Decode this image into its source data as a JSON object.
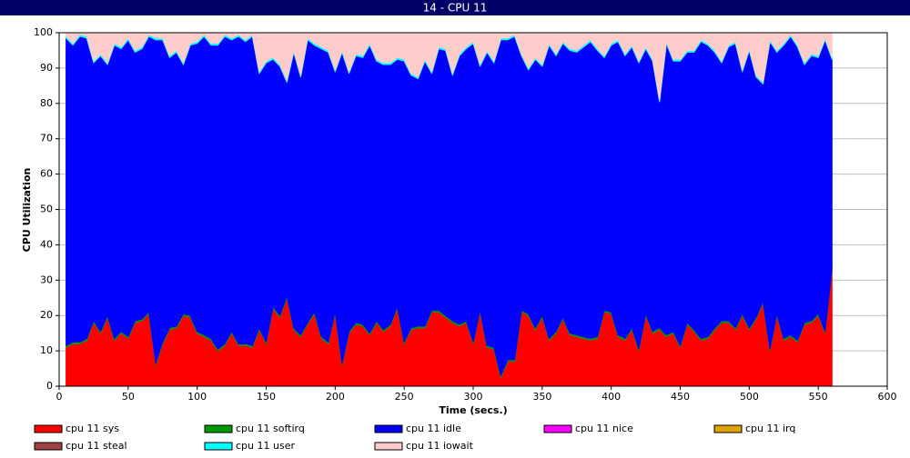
{
  "chart_data": {
    "type": "stacked_area",
    "title": "14 - CPU 11",
    "xlabel": "Time (secs.)",
    "ylabel": "CPU Utilization",
    "xlim": [
      0,
      600
    ],
    "ylim": [
      0,
      100
    ],
    "xticks": [
      0,
      50,
      100,
      150,
      200,
      250,
      300,
      350,
      400,
      450,
      500,
      550,
      600
    ],
    "yticks": [
      0,
      10,
      20,
      30,
      40,
      50,
      60,
      70,
      80,
      90,
      100
    ],
    "grid": true,
    "legend": "bottom",
    "x": [
      5,
      10,
      15,
      20,
      25,
      30,
      35,
      40,
      45,
      50,
      55,
      60,
      65,
      70,
      75,
      80,
      85,
      90,
      95,
      100,
      105,
      110,
      115,
      120,
      125,
      130,
      135,
      140,
      145,
      150,
      155,
      160,
      165,
      170,
      175,
      180,
      185,
      190,
      195,
      200,
      205,
      210,
      215,
      220,
      225,
      230,
      235,
      240,
      245,
      250,
      255,
      260,
      265,
      270,
      275,
      280,
      285,
      290,
      295,
      300,
      305,
      310,
      315,
      320,
      325,
      330,
      335,
      340,
      345,
      350,
      355,
      360,
      365,
      370,
      375,
      380,
      385,
      390,
      395,
      400,
      405,
      410,
      415,
      420,
      425,
      430,
      435,
      440,
      445,
      450,
      455,
      460,
      465,
      470,
      475,
      480,
      485,
      490,
      495,
      500,
      505,
      510,
      515,
      520,
      525,
      530,
      535,
      540,
      545,
      550,
      555,
      560
    ],
    "series": [
      {
        "name": "cpu 11 sys",
        "color": "#ff0000",
        "values": [
          11,
          12,
          12,
          13,
          18,
          15,
          19.5,
          13,
          15,
          13.5,
          18,
          18.5,
          20.5,
          6,
          12,
          16,
          16.5,
          20,
          19.5,
          15,
          14,
          13,
          10,
          11.5,
          15,
          11.5,
          11.5,
          11,
          16,
          12,
          22,
          19.5,
          25,
          16,
          14,
          17.5,
          20.5,
          13.5,
          12,
          20.5,
          6,
          15,
          17.5,
          17,
          14.5,
          18,
          15.5,
          17,
          22,
          12,
          16,
          16.5,
          16.5,
          21,
          21,
          19.5,
          18,
          17,
          18,
          12,
          21,
          11,
          10.5,
          2.5,
          7,
          7,
          21,
          20,
          16,
          19.5,
          13,
          15,
          19,
          14.5,
          14,
          13.5,
          13,
          13.5,
          21,
          20.5,
          14,
          13,
          16,
          10,
          20,
          15,
          16,
          14,
          15,
          11,
          17.5,
          15.5,
          13,
          13.5,
          16,
          18,
          18,
          16,
          20,
          16,
          19,
          23.5,
          10,
          20,
          13,
          14,
          12.5,
          17.5,
          18,
          20,
          15,
          33
        ]
      },
      {
        "name": "cpu 11 softirq",
        "color": "#009900",
        "values": [
          0.5,
          0.5,
          0.5,
          0.5,
          0.5,
          0.5,
          0.5,
          0.5,
          0.5,
          0.5,
          0.5,
          0.5,
          0.5,
          0.5,
          0.5,
          0.5,
          0.5,
          0.5,
          0.5,
          0.5,
          0.5,
          0.5,
          0.5,
          0.5,
          0.5,
          0.5,
          0.5,
          0.5,
          0.5,
          0.5,
          0.5,
          0.5,
          0.5,
          0.5,
          0.5,
          0.5,
          0.5,
          0.5,
          0.5,
          0.5,
          0.5,
          0.5,
          0.5,
          0.5,
          0.5,
          0.5,
          0.5,
          0.5,
          0.5,
          0.5,
          0.5,
          0.5,
          0.5,
          0.5,
          0.5,
          0.5,
          0.5,
          0.5,
          0.5,
          0.5,
          0.5,
          0.5,
          0.5,
          0.5,
          0.5,
          0.5,
          0.5,
          0.5,
          0.5,
          0.5,
          0.5,
          0.5,
          0.5,
          0.5,
          0.5,
          0.5,
          0.5,
          0.5,
          0.5,
          0.5,
          0.5,
          0.5,
          0.5,
          0.5,
          0.5,
          0.5,
          0.5,
          0.5,
          0.5,
          0.5,
          0.5,
          0.5,
          0.5,
          0.5,
          0.5,
          0.5,
          0.5,
          0.5,
          0.5,
          0.5,
          0.5,
          0.5,
          0.5,
          0.5,
          0.5,
          0.5,
          0.5,
          0.5,
          0.5,
          0.5,
          0.5,
          0.5
        ]
      },
      {
        "name": "cpu 11 idle",
        "color": "#0000ff",
        "values": [
          87,
          84,
          86.5,
          85,
          73,
          78,
          71,
          83,
          80,
          84,
          76,
          76.5,
          78,
          91.5,
          85.5,
          76.5,
          77.5,
          70.5,
          76.5,
          81.5,
          84.5,
          83,
          86,
          87,
          82.5,
          87,
          85.5,
          87.5,
          72,
          79,
          70,
          70.5,
          60.5,
          78,
          73,
          80,
          75.5,
          81.5,
          82,
          68,
          88,
          73,
          75.5,
          75.5,
          81.5,
          73.5,
          75,
          73.5,
          70,
          79.5,
          71.5,
          70,
          75,
          67,
          74,
          75,
          69.5,
          76,
          77,
          84.5,
          69,
          83,
          80.5,
          95,
          90.5,
          91.5,
          72,
          69,
          76,
          70.5,
          83,
          78,
          77.5,
          80,
          80,
          82,
          84,
          81,
          71.5,
          75.5,
          83,
          80,
          79.5,
          81,
          75,
          76.5,
          64,
          82.5,
          76.5,
          80.5,
          76.5,
          78.5,
          84,
          82.5,
          78,
          73,
          77.5,
          80.5,
          68.5,
          78.5,
          68,
          61.5,
          87,
          74,
          83,
          84.5,
          83,
          73,
          75,
          72.5,
          82.5,
          59
        ]
      },
      {
        "name": "cpu 11 nice",
        "color": "#ff00ff",
        "values": [
          0,
          0,
          0,
          0,
          0,
          0,
          0,
          0,
          0,
          0,
          0,
          0,
          0,
          0,
          0,
          0,
          0,
          0,
          0,
          0,
          0,
          0,
          0,
          0,
          0,
          0,
          0,
          0,
          0,
          0,
          0,
          0,
          0,
          0,
          0,
          0,
          0,
          0,
          0,
          0,
          0,
          0,
          0,
          0,
          0,
          0,
          0,
          0,
          0,
          0,
          0,
          0,
          0,
          0,
          0,
          0,
          0,
          0,
          0,
          0,
          0,
          0,
          0,
          0,
          0,
          0,
          0,
          0,
          0,
          0,
          0,
          0,
          0,
          0,
          0,
          0,
          0,
          0,
          0,
          0,
          0,
          0,
          0,
          0,
          0,
          0,
          0,
          0,
          0,
          0,
          0,
          0,
          0,
          0,
          0,
          0,
          0,
          0,
          0,
          0,
          0,
          0,
          0,
          0,
          0,
          0,
          0,
          0,
          0,
          0,
          0,
          0
        ]
      },
      {
        "name": "cpu 11 irq",
        "color": "#e0a000",
        "values": [
          0,
          0,
          0,
          0,
          0,
          0,
          0,
          0,
          0,
          0,
          0,
          0,
          0,
          0,
          0,
          0,
          0,
          0,
          0,
          0,
          0,
          0,
          0,
          0,
          0,
          0,
          0,
          0,
          0,
          0,
          0,
          0,
          0,
          0,
          0,
          0,
          0,
          0,
          0,
          0,
          0,
          0,
          0,
          0,
          0,
          0,
          0,
          0,
          0,
          0,
          0,
          0,
          0,
          0,
          0,
          0,
          0,
          0,
          0,
          0,
          0,
          0,
          0,
          0,
          0,
          0,
          0,
          0,
          0,
          0,
          0,
          0,
          0,
          0,
          0,
          0,
          0,
          0,
          0,
          0,
          0,
          0,
          0,
          0,
          0,
          0,
          0,
          0,
          0,
          0,
          0,
          0,
          0,
          0,
          0,
          0,
          0,
          0,
          0,
          0,
          0,
          0,
          0,
          0,
          0,
          0,
          0,
          0,
          0,
          0,
          0,
          0
        ]
      },
      {
        "name": "cpu 11 steal",
        "color": "#a04040",
        "values": [
          0,
          0,
          0,
          0,
          0,
          0,
          0,
          0,
          0,
          0,
          0,
          0,
          0,
          0,
          0,
          0,
          0,
          0,
          0,
          0,
          0,
          0,
          0,
          0,
          0,
          0,
          0,
          0,
          0,
          0,
          0,
          0,
          0,
          0,
          0,
          0,
          0,
          0,
          0,
          0,
          0,
          0,
          0,
          0,
          0,
          0,
          0,
          0,
          0,
          0,
          0,
          0,
          0,
          0,
          0,
          0,
          0,
          0,
          0,
          0,
          0,
          0,
          0,
          0,
          0,
          0,
          0,
          0,
          0,
          0,
          0,
          0,
          0,
          0,
          0,
          0,
          0,
          0,
          0,
          0,
          0,
          0,
          0,
          0,
          0,
          0,
          0,
          0,
          0,
          0,
          0,
          0,
          0,
          0,
          0,
          0,
          0,
          0,
          0,
          0,
          0,
          0,
          0,
          0,
          0,
          0,
          0,
          0,
          0,
          0,
          0,
          0
        ]
      },
      {
        "name": "cpu 11 user",
        "color": "#00ffff",
        "values": [
          0.5,
          0.5,
          0.5,
          0.5,
          0.5,
          0.5,
          0.5,
          0.5,
          0.5,
          0.5,
          0.5,
          0.5,
          0.5,
          0.5,
          0.5,
          0.5,
          0.5,
          0.5,
          0.5,
          0.5,
          0.5,
          0.5,
          0.5,
          0.5,
          0.5,
          0.5,
          0.5,
          0.5,
          0.5,
          0.5,
          0.5,
          0.5,
          0.5,
          0.5,
          0.5,
          0.5,
          0.5,
          0.5,
          0.5,
          0.5,
          0.5,
          0.5,
          0.5,
          0.5,
          0.5,
          0.5,
          0.5,
          0.5,
          0.5,
          0.5,
          0.5,
          0.5,
          0.5,
          0.5,
          0.5,
          0.5,
          0.5,
          0.5,
          0.5,
          0.5,
          0.5,
          0.5,
          0.5,
          0.5,
          0.5,
          0.5,
          0.5,
          0.5,
          0.5,
          0.5,
          0.5,
          0.5,
          0.5,
          0.5,
          0.5,
          0.5,
          0.5,
          0.5,
          0.5,
          0.5,
          0.5,
          0.5,
          0.5,
          0.5,
          0.5,
          0.5,
          0.5,
          0.5,
          0.5,
          0.5,
          0.5,
          0.5,
          0.5,
          0.5,
          0.5,
          0.5,
          0.5,
          0.5,
          0.5,
          0.5,
          0.5,
          0.5,
          0.5,
          0.5,
          0.5,
          0.5,
          0.5,
          0.5,
          0.5,
          0.5,
          0.5,
          0.5
        ]
      },
      {
        "name": "cpu 11 iowait",
        "color": "#ffcccc",
        "values": [
          1,
          3,
          0.5,
          1,
          8,
          6,
          8.5,
          3,
          4,
          1.5,
          5,
          4,
          0.5,
          1.5,
          1.5,
          6.5,
          5,
          8.5,
          3,
          2.5,
          0.5,
          3,
          3,
          0.5,
          1.5,
          0.5,
          2,
          0.5,
          11,
          8,
          7,
          9,
          13.5,
          5,
          12,
          1.5,
          3,
          4,
          5,
          10.5,
          5,
          11,
          6,
          6.5,
          3,
          7.5,
          8.5,
          8.5,
          7,
          7.5,
          11.5,
          12.5,
          7.5,
          11,
          4,
          4.5,
          11.5,
          6,
          4,
          2.5,
          9,
          5,
          8,
          1.5,
          1.5,
          0.5,
          6,
          10,
          7,
          9,
          3,
          6,
          2.5,
          4.5,
          5,
          3.5,
          2,
          4.5,
          6.5,
          3,
          2,
          6,
          3.5,
          8,
          4,
          7.5,
          19,
          2.5,
          7.5,
          7.5,
          5,
          5,
          2,
          3,
          5,
          8,
          3.5,
          2.5,
          10.5,
          4.5,
          12,
          14,
          2,
          5,
          3,
          0.5,
          3.5,
          8.5,
          6,
          6.5,
          1.5,
          7
        ]
      }
    ]
  }
}
